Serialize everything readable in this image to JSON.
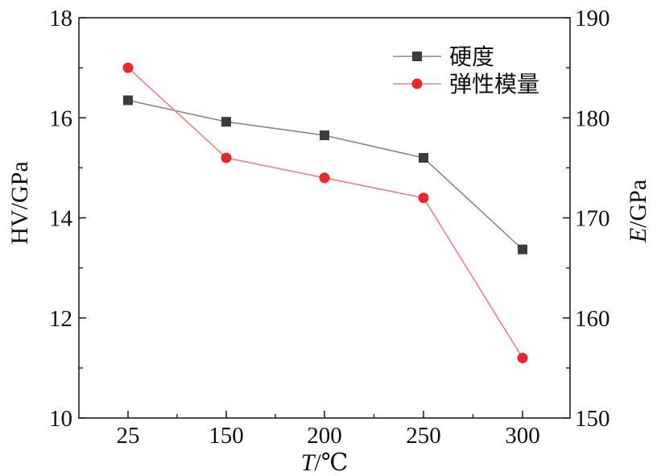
{
  "chart_data": {
    "type": "line",
    "categories": [
      "25",
      "150",
      "200",
      "250",
      "300"
    ],
    "xlabel": {
      "var": "T",
      "unit": "/℃"
    },
    "ylabel_left": "HV/GPa",
    "ylabel_right": {
      "var": "E",
      "unit": "/GPa"
    },
    "ylim_left": [
      10,
      18
    ],
    "yticks_left": [
      10,
      12,
      14,
      16,
      18
    ],
    "ylim_right": [
      150,
      190
    ],
    "yticks_right": [
      150,
      160,
      170,
      180,
      190
    ],
    "grid": false,
    "legend_position": "top-right",
    "series": [
      {
        "name": "硬度",
        "axis": "left",
        "marker": "square",
        "color": "#888888",
        "marker_color": "#3c3c3c",
        "values": [
          16.35,
          15.92,
          15.65,
          15.2,
          13.37
        ]
      },
      {
        "name": "弹性模量",
        "axis": "right",
        "marker": "circle",
        "color": "#f08080",
        "marker_color": "#e8282c",
        "values": [
          185,
          176,
          174,
          172,
          156
        ]
      }
    ]
  }
}
